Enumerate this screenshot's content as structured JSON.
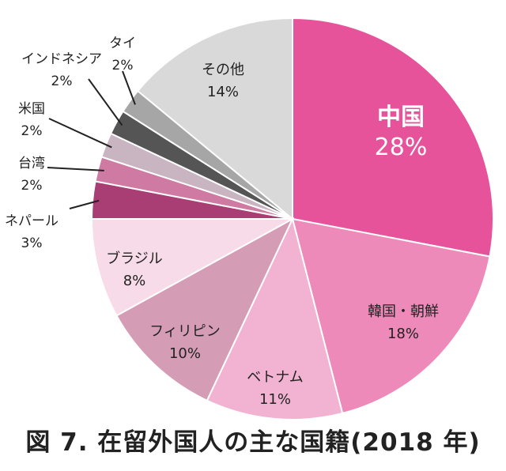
{
  "caption": "図 7.  在留外国人の主な国籍(2018 年)",
  "chart_data": {
    "type": "pie",
    "title": "",
    "start": "12 o'clock",
    "direction": "clockwise",
    "slices": [
      {
        "name": "中国",
        "value": 28,
        "label": "28%",
        "color": "#e6539a",
        "text_color": "#ffffff"
      },
      {
        "name": "韓国・朝鮮",
        "value": 18,
        "label": "18%",
        "color": "#ee8ab9",
        "text_color": "#222222"
      },
      {
        "name": "ベトナム",
        "value": 11,
        "label": "11%",
        "color": "#f2b3d2",
        "text_color": "#222222"
      },
      {
        "name": "フィリピン",
        "value": 10,
        "label": "10%",
        "color": "#d59db5",
        "text_color": "#222222"
      },
      {
        "name": "ブラジル",
        "value": 8,
        "label": "8%",
        "color": "#f8dbe8",
        "text_color": "#222222"
      },
      {
        "name": "ネパール",
        "value": 3,
        "label": "3%",
        "color": "#a83e73",
        "text_color": "#222222"
      },
      {
        "name": "台湾",
        "value": 2,
        "label": "2%",
        "color": "#cf7aa3",
        "text_color": "#222222"
      },
      {
        "name": "米国",
        "value": 2,
        "label": "2%",
        "color": "#c9b4c1",
        "text_color": "#222222"
      },
      {
        "name": "インドネシア",
        "value": 2,
        "label": "2%",
        "color": "#555555",
        "text_color": "#222222"
      },
      {
        "name": "タイ",
        "value": 2,
        "label": "2%",
        "color": "#a6a6a6",
        "text_color": "#222222"
      },
      {
        "name": "その他",
        "value": 14,
        "label": "14%",
        "color": "#d9d9d9",
        "text_color": "#222222"
      }
    ]
  }
}
